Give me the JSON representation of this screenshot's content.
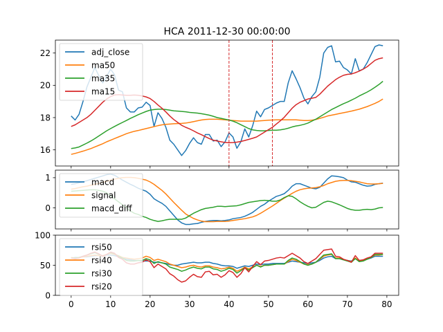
{
  "chart_data": [
    {
      "type": "line",
      "title": "HCA 2011-12-30 00:00:00",
      "xlim": [
        -4,
        83
      ],
      "ylim": [
        15.0,
        22.8
      ],
      "yticks": [
        16,
        18,
        20,
        22
      ],
      "xticks": [
        0,
        10,
        20,
        30,
        40,
        50,
        60,
        70,
        80
      ],
      "vlines": [
        40,
        51
      ],
      "vline_color": "#d62728",
      "legend": "top-left",
      "series": [
        {
          "name": "adj_close",
          "color": "#1f77b4",
          "values": [
            18.1,
            17.85,
            18.2,
            19.0,
            19.9,
            20.5,
            21.1,
            20.6,
            20.15,
            20.55,
            21.0,
            20.65,
            19.7,
            19.6,
            18.6,
            18.35,
            18.35,
            18.6,
            18.65,
            18.95,
            18.75,
            17.45,
            18.3,
            17.95,
            17.4,
            16.6,
            16.35,
            16.0,
            15.65,
            15.95,
            16.4,
            16.75,
            16.45,
            16.35,
            16.95,
            16.95,
            16.55,
            16.6,
            16.2,
            16.5,
            17.05,
            16.8,
            16.1,
            16.5,
            17.3,
            16.8,
            17.5,
            18.4,
            18.05,
            18.5,
            18.6,
            18.75,
            18.9,
            19.0,
            19.0,
            20.15,
            20.9,
            20.4,
            19.85,
            19.2,
            18.85,
            19.3,
            19.6,
            20.5,
            22.0,
            22.35,
            22.45,
            21.45,
            21.5,
            21.1,
            20.95,
            20.7,
            21.65,
            20.9,
            21.0,
            21.4,
            21.9,
            22.4,
            22.5,
            22.45
          ]
        },
        {
          "name": "ma50",
          "color": "#ff7f0e",
          "values": [
            15.72,
            15.78,
            15.85,
            15.92,
            16.0,
            16.08,
            16.18,
            16.28,
            16.38,
            16.5,
            16.6,
            16.7,
            16.8,
            16.9,
            17.0,
            17.08,
            17.15,
            17.2,
            17.26,
            17.32,
            17.38,
            17.44,
            17.5,
            17.55,
            17.58,
            17.6,
            17.62,
            17.63,
            17.64,
            17.66,
            17.7,
            17.75,
            17.8,
            17.85,
            17.88,
            17.9,
            17.9,
            17.9,
            17.88,
            17.86,
            17.84,
            17.82,
            17.8,
            17.78,
            17.78,
            17.78,
            17.78,
            17.78,
            17.8,
            17.82,
            17.84,
            17.85,
            17.86,
            17.86,
            17.86,
            17.86,
            17.86,
            17.86,
            17.84,
            17.82,
            17.82,
            17.84,
            17.88,
            17.95,
            18.02,
            18.1,
            18.15,
            18.2,
            18.25,
            18.3,
            18.35,
            18.4,
            18.46,
            18.52,
            18.6,
            18.68,
            18.78,
            18.88,
            19.0,
            19.15
          ]
        },
        {
          "name": "ma35",
          "color": "#2ca02c",
          "values": [
            16.08,
            16.12,
            16.18,
            16.3,
            16.42,
            16.55,
            16.7,
            16.86,
            17.02,
            17.18,
            17.32,
            17.45,
            17.58,
            17.7,
            17.82,
            17.95,
            18.06,
            18.18,
            18.28,
            18.38,
            18.46,
            18.5,
            18.52,
            18.52,
            18.5,
            18.46,
            18.42,
            18.4,
            18.38,
            18.36,
            18.32,
            18.3,
            18.28,
            18.24,
            18.2,
            18.15,
            18.08,
            18.0,
            17.95,
            17.9,
            17.85,
            17.78,
            17.68,
            17.56,
            17.44,
            17.32,
            17.24,
            17.2,
            17.18,
            17.18,
            17.2,
            17.22,
            17.22,
            17.24,
            17.28,
            17.34,
            17.42,
            17.48,
            17.52,
            17.58,
            17.66,
            17.78,
            17.9,
            18.05,
            18.2,
            18.35,
            18.5,
            18.62,
            18.74,
            18.86,
            18.96,
            19.08,
            19.2,
            19.34,
            19.46,
            19.58,
            19.72,
            19.88,
            20.05,
            20.25
          ]
        },
        {
          "name": "ma15",
          "color": "#d62728",
          "values": [
            17.45,
            17.55,
            17.7,
            17.85,
            18.0,
            18.2,
            18.45,
            18.7,
            18.95,
            19.15,
            19.3,
            19.4,
            19.42,
            19.4,
            19.38,
            19.38,
            19.4,
            19.38,
            19.34,
            19.28,
            19.18,
            19.0,
            18.78,
            18.58,
            18.35,
            18.1,
            17.88,
            17.7,
            17.52,
            17.4,
            17.3,
            17.18,
            17.05,
            16.94,
            16.82,
            16.7,
            16.6,
            16.55,
            16.5,
            16.46,
            16.44,
            16.45,
            16.48,
            16.52,
            16.58,
            16.65,
            16.72,
            16.8,
            16.95,
            17.1,
            17.25,
            17.4,
            17.6,
            17.8,
            18.02,
            18.3,
            18.58,
            18.8,
            18.95,
            19.05,
            19.15,
            19.2,
            19.25,
            19.45,
            19.7,
            19.95,
            20.15,
            20.35,
            20.5,
            20.62,
            20.68,
            20.7,
            20.78,
            20.88,
            21.0,
            21.15,
            21.35,
            21.55,
            21.65,
            21.7
          ]
        }
      ]
    },
    {
      "type": "line",
      "xlim": [
        -4,
        83
      ],
      "ylim": [
        -0.7,
        1.25
      ],
      "yticks": [
        0,
        1
      ],
      "xticks": [
        0,
        10,
        20,
        30,
        40,
        50,
        60,
        70,
        80
      ],
      "legend": "top-left",
      "series": [
        {
          "name": "macd",
          "color": "#1f77b4",
          "values": [
            0.78,
            0.8,
            0.83,
            0.86,
            0.9,
            0.94,
            0.98,
            1.02,
            1.06,
            1.1,
            1.12,
            1.08,
            1.0,
            0.92,
            0.85,
            0.78,
            0.72,
            0.65,
            0.6,
            0.55,
            0.45,
            0.3,
            0.22,
            0.15,
            0.05,
            -0.1,
            -0.25,
            -0.4,
            -0.5,
            -0.55,
            -0.55,
            -0.53,
            -0.52,
            -0.48,
            -0.45,
            -0.43,
            -0.42,
            -0.42,
            -0.43,
            -0.42,
            -0.4,
            -0.36,
            -0.34,
            -0.32,
            -0.28,
            -0.22,
            -0.15,
            -0.05,
            0.05,
            0.12,
            0.22,
            0.3,
            0.38,
            0.42,
            0.47,
            0.58,
            0.72,
            0.8,
            0.8,
            0.75,
            0.7,
            0.65,
            0.63,
            0.68,
            0.82,
            0.96,
            1.06,
            1.05,
            1.03,
            1.0,
            0.92,
            0.86,
            0.85,
            0.8,
            0.75,
            0.72,
            0.73,
            0.78,
            0.8,
            0.82
          ]
        },
        {
          "name": "signal",
          "color": "#ff7f0e",
          "values": [
            0.62,
            0.64,
            0.67,
            0.7,
            0.72,
            0.75,
            0.78,
            0.81,
            0.85,
            0.88,
            0.92,
            0.95,
            0.98,
            1.0,
            1.01,
            1.01,
            1.0,
            0.98,
            0.95,
            0.92,
            0.86,
            0.78,
            0.68,
            0.58,
            0.46,
            0.32,
            0.18,
            0.05,
            -0.08,
            -0.2,
            -0.28,
            -0.35,
            -0.4,
            -0.44,
            -0.46,
            -0.46,
            -0.46,
            -0.45,
            -0.45,
            -0.45,
            -0.44,
            -0.42,
            -0.4,
            -0.38,
            -0.36,
            -0.33,
            -0.3,
            -0.25,
            -0.18,
            -0.1,
            -0.02,
            0.06,
            0.15,
            0.24,
            0.32,
            0.4,
            0.48,
            0.55,
            0.6,
            0.63,
            0.65,
            0.66,
            0.67,
            0.7,
            0.74,
            0.8,
            0.84,
            0.88,
            0.9,
            0.91,
            0.91,
            0.9,
            0.88,
            0.86,
            0.83,
            0.8,
            0.79,
            0.79,
            0.8,
            0.81
          ]
        },
        {
          "name": "macd_diff",
          "color": "#2ca02c",
          "values": [
            0.55,
            0.56,
            0.57,
            0.58,
            0.59,
            0.6,
            0.6,
            0.58,
            0.55,
            0.5,
            0.4,
            0.3,
            0.2,
            0.1,
            0.0,
            -0.1,
            -0.18,
            -0.22,
            -0.28,
            -0.32,
            -0.38,
            -0.42,
            -0.45,
            -0.43,
            -0.4,
            -0.38,
            -0.38,
            -0.38,
            -0.38,
            -0.34,
            -0.26,
            -0.18,
            -0.12,
            -0.06,
            -0.02,
            0.0,
            0.02,
            0.05,
            0.05,
            0.04,
            0.05,
            0.06,
            0.07,
            0.1,
            0.14,
            0.18,
            0.2,
            0.22,
            0.24,
            0.25,
            0.24,
            0.22,
            0.22,
            0.26,
            0.34,
            0.4,
            0.38,
            0.3,
            0.2,
            0.12,
            0.05,
            0.0,
            0.02,
            0.1,
            0.18,
            0.22,
            0.2,
            0.15,
            0.1,
            0.04,
            -0.02,
            -0.06,
            -0.08,
            -0.08,
            -0.06,
            -0.05,
            -0.06,
            -0.04,
            0.0,
            0.01
          ]
        }
      ]
    },
    {
      "type": "line",
      "xlim": [
        -4,
        83
      ],
      "ylim": [
        0,
        100
      ],
      "yticks": [
        0,
        50,
        100
      ],
      "xticks": [
        0,
        10,
        20,
        30,
        40,
        50,
        60,
        70,
        80
      ],
      "legend": "top-left",
      "series": [
        {
          "name": "rsi50",
          "color": "#1f77b4",
          "values": [
            62,
            63,
            63,
            64,
            64,
            65,
            66,
            66,
            66,
            67,
            67,
            66,
            64,
            62,
            60,
            59,
            58,
            58,
            57,
            57,
            57,
            55,
            55,
            54,
            53,
            51,
            50,
            50,
            52,
            53,
            54,
            55,
            54,
            54,
            55,
            55,
            53,
            52,
            50,
            49,
            49,
            48,
            45,
            47,
            49,
            48,
            50,
            52,
            51,
            52,
            52,
            53,
            53,
            53,
            53,
            55,
            57,
            56,
            55,
            54,
            53,
            54,
            55,
            58,
            62,
            64,
            65,
            61,
            61,
            59,
            58,
            57,
            61,
            58,
            58,
            60,
            62,
            65,
            65,
            65
          ]
        },
        {
          "name": "rsi40",
          "color": "#ff7f0e",
          "values": [
            63,
            62,
            63,
            64,
            65,
            66,
            67,
            66,
            66,
            68,
            70,
            68,
            66,
            63,
            62,
            61,
            60,
            61,
            62,
            65,
            63,
            58,
            60,
            58,
            56,
            52,
            50,
            48,
            46,
            47,
            49,
            50,
            48,
            47,
            49,
            49,
            47,
            46,
            44,
            45,
            47,
            45,
            40,
            43,
            47,
            44,
            47,
            50,
            48,
            50,
            50,
            51,
            52,
            52,
            52,
            56,
            60,
            58,
            55,
            52,
            51,
            52,
            55,
            60,
            65,
            67,
            68,
            62,
            62,
            59,
            58,
            56,
            62,
            57,
            58,
            60,
            63,
            67,
            67,
            68
          ]
        },
        {
          "name": "rsi30",
          "color": "#2ca02c",
          "values": [
            62,
            62,
            63,
            65,
            67,
            69,
            71,
            68,
            65,
            68,
            71,
            69,
            65,
            62,
            58,
            57,
            57,
            58,
            58,
            61,
            59,
            53,
            56,
            54,
            52,
            47,
            45,
            43,
            40,
            42,
            45,
            47,
            45,
            44,
            47,
            47,
            44,
            43,
            40,
            42,
            45,
            43,
            37,
            41,
            46,
            42,
            46,
            50,
            47,
            50,
            50,
            51,
            52,
            52,
            52,
            58,
            62,
            60,
            56,
            52,
            50,
            52,
            55,
            61,
            67,
            68,
            69,
            61,
            61,
            59,
            57,
            55,
            61,
            56,
            57,
            60,
            63,
            68,
            68,
            68
          ]
        },
        {
          "name": "rsi20",
          "color": "#d62728",
          "values": [
            62,
            61,
            62,
            65,
            67,
            70,
            72,
            69,
            65,
            68,
            72,
            70,
            63,
            60,
            54,
            52,
            52,
            54,
            55,
            59,
            56,
            46,
            52,
            48,
            44,
            36,
            32,
            26,
            22,
            24,
            30,
            35,
            31,
            30,
            39,
            40,
            34,
            35,
            30,
            34,
            41,
            38,
            30,
            36,
            46,
            39,
            48,
            56,
            51,
            57,
            58,
            60,
            62,
            63,
            62,
            66,
            70,
            66,
            62,
            56,
            53,
            57,
            61,
            68,
            75,
            76,
            77,
            65,
            64,
            60,
            58,
            55,
            66,
            58,
            59,
            62,
            64,
            70,
            70,
            70
          ]
        }
      ]
    }
  ]
}
